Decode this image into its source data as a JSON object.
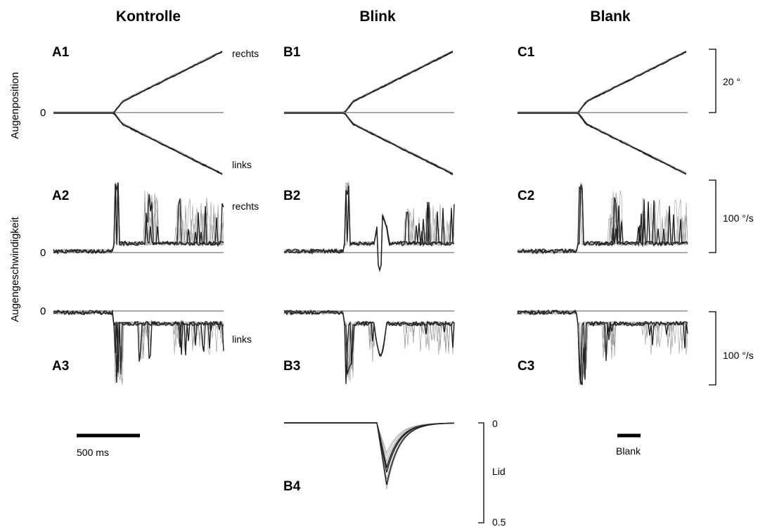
{
  "chart_data": {
    "type": "line",
    "columns": [
      "Kontrolle",
      "Blink",
      "Blank"
    ],
    "row_labels": {
      "position": "Augenposition",
      "velocity": "Augengeschwindigkeit"
    },
    "direction_labels": {
      "right": "rechts",
      "left": "links"
    },
    "zero_label": "0",
    "panels": {
      "A1": "A1",
      "B1": "B1",
      "C1": "C1",
      "A2": "A2",
      "B2": "B2",
      "C2": "C2",
      "A3": "A3",
      "B3": "B3",
      "C3": "C3",
      "B4": "B4"
    },
    "scale_bars": {
      "position": "20 °",
      "velocity_right": "100 °/s",
      "velocity_left": "100 °/s",
      "time": "500 ms",
      "blank": "Blank"
    },
    "lid": {
      "label": "Lid",
      "top": "0",
      "bottom": "0.5"
    },
    "notes": {
      "trace_color": "#222222",
      "overlay_color": "#9a9a9a",
      "zero_line_color": "#555555"
    }
  }
}
